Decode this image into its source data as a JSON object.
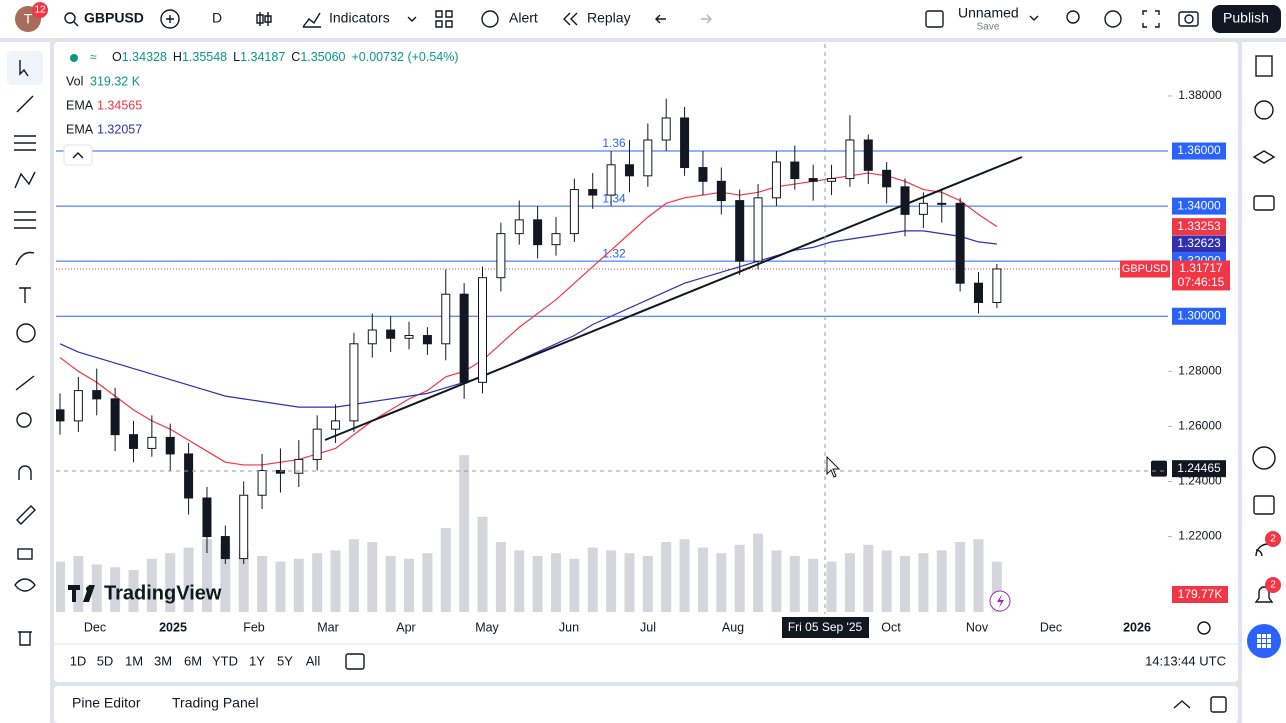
{
  "toolbar": {
    "avatar": "T",
    "badge": "12",
    "symbol": "GBPUSD",
    "interval": "D",
    "indicators": "Indicators",
    "alert": "Alert",
    "replay": "Replay",
    "layout_name": "Unnamed",
    "save": "Save",
    "publish": "Publish"
  },
  "legend": {
    "ohlc": [
      {
        "key": "O",
        "value": "1.34328"
      },
      {
        "key": "H",
        "value": "1.35548"
      },
      {
        "key": "L",
        "value": "1.34187"
      },
      {
        "key": "C",
        "value": "1.35060"
      }
    ],
    "change": "+0.00732 (+0.54%)",
    "volume": {
      "name": "Vol",
      "value": "319.32 K"
    }
  },
  "chart_data": {
    "type": "candlestick",
    "ylim": [
      1.1926,
      1.3985
    ],
    "yticks": [
      {
        "value": 1.38,
        "label": "1.38000"
      },
      {
        "value": 1.28,
        "label": "1.28000"
      },
      {
        "value": 1.26,
        "label": "1.26000"
      },
      {
        "value": 1.24,
        "label": "1.24000"
      },
      {
        "value": 1.22,
        "label": "1.22000"
      }
    ],
    "series": [
      {
        "name": "GBPUSD",
        "up_color": "#ffffff",
        "down_color": "#131722",
        "open": [
          1.266,
          1.262,
          1.273,
          1.27,
          1.257,
          1.252,
          1.256,
          1.25,
          1.234,
          1.22,
          1.212,
          1.235,
          1.244,
          1.243,
          1.248,
          1.259,
          1.262,
          1.29,
          1.295,
          1.292,
          1.293,
          1.29,
          1.308,
          1.276,
          1.314,
          1.33,
          1.335,
          1.326,
          1.33,
          1.346,
          1.344,
          1.355,
          1.351,
          1.364,
          1.372,
          1.354,
          1.349,
          1.342,
          1.32,
          1.343,
          1.356,
          1.35,
          1.349,
          1.35,
          1.364,
          1.353,
          1.347,
          1.337,
          1.341,
          1.341,
          1.312,
          1.305
        ],
        "high": [
          1.272,
          1.278,
          1.281,
          1.274,
          1.262,
          1.264,
          1.261,
          1.254,
          1.238,
          1.224,
          1.24,
          1.25,
          1.252,
          1.255,
          1.264,
          1.268,
          1.294,
          1.301,
          1.3,
          1.298,
          1.296,
          1.317,
          1.312,
          1.318,
          1.334,
          1.342,
          1.34,
          1.336,
          1.35,
          1.352,
          1.36,
          1.364,
          1.37,
          1.379,
          1.376,
          1.36,
          1.354,
          1.346,
          1.348,
          1.36,
          1.362,
          1.355,
          1.355,
          1.373,
          1.366,
          1.356,
          1.35,
          1.345,
          1.346,
          1.343,
          1.316,
          1.319
        ],
        "low": [
          1.257,
          1.258,
          1.264,
          1.251,
          1.247,
          1.249,
          1.244,
          1.228,
          1.214,
          1.21,
          1.21,
          1.23,
          1.236,
          1.238,
          1.244,
          1.254,
          1.258,
          1.285,
          1.287,
          1.288,
          1.286,
          1.284,
          1.27,
          1.272,
          1.309,
          1.326,
          1.321,
          1.322,
          1.327,
          1.339,
          1.34,
          1.345,
          1.347,
          1.36,
          1.351,
          1.344,
          1.337,
          1.315,
          1.317,
          1.34,
          1.346,
          1.342,
          1.344,
          1.347,
          1.348,
          1.341,
          1.329,
          1.332,
          1.334,
          1.309,
          1.301,
          1.303
        ],
        "close": [
          1.262,
          1.273,
          1.27,
          1.257,
          1.252,
          1.256,
          1.25,
          1.234,
          1.22,
          1.212,
          1.235,
          1.244,
          1.243,
          1.248,
          1.259,
          1.262,
          1.29,
          1.295,
          1.292,
          1.293,
          1.29,
          1.308,
          1.276,
          1.314,
          1.33,
          1.335,
          1.326,
          1.33,
          1.346,
          1.344,
          1.355,
          1.351,
          1.364,
          1.372,
          1.354,
          1.349,
          1.342,
          1.32,
          1.343,
          1.356,
          1.35,
          1.349,
          1.35,
          1.364,
          1.353,
          1.347,
          1.337,
          1.341,
          1.341,
          1.312,
          1.305,
          1.31717
        ]
      }
    ],
    "volume": {
      "color": "#b2b5be",
      "last_label": "179.77K",
      "last_color": "#f23645",
      "values": [
        180,
        200,
        170,
        160,
        150,
        190,
        210,
        230,
        260,
        240,
        220,
        200,
        180,
        190,
        210,
        220,
        260,
        250,
        200,
        190,
        210,
        300,
        560,
        340,
        250,
        220,
        200,
        210,
        190,
        230,
        220,
        210,
        200,
        250,
        260,
        230,
        210,
        240,
        280,
        220,
        200,
        190,
        180,
        210,
        240,
        220,
        200,
        210,
        220,
        250,
        260,
        179.77
      ]
    },
    "emas": [
      {
        "name": "EMA",
        "legend_value": "1.34565",
        "last_label": "1.33253",
        "color": "#f23645",
        "values": [
          1.285,
          1.28,
          1.276,
          1.271,
          1.266,
          1.262,
          1.259,
          1.255,
          1.251,
          1.247,
          1.246,
          1.246,
          1.247,
          1.248,
          1.25,
          1.252,
          1.257,
          1.262,
          1.266,
          1.27,
          1.273,
          1.278,
          1.28,
          1.284,
          1.29,
          1.296,
          1.301,
          1.306,
          1.312,
          1.318,
          1.324,
          1.33,
          1.336,
          1.341,
          1.343,
          1.344,
          1.345,
          1.344,
          1.345,
          1.347,
          1.348,
          1.349,
          1.35,
          1.351,
          1.352,
          1.351,
          1.349,
          1.346,
          1.345,
          1.342,
          1.337,
          1.33253
        ]
      },
      {
        "name": "EMA",
        "legend_value": "1.32057",
        "last_label": "1.32623",
        "color": "#3030b0",
        "values": [
          1.29,
          1.287,
          1.285,
          1.283,
          1.281,
          1.279,
          1.277,
          1.275,
          1.273,
          1.271,
          1.27,
          1.269,
          1.268,
          1.267,
          1.267,
          1.267,
          1.268,
          1.269,
          1.27,
          1.271,
          1.272,
          1.274,
          1.276,
          1.278,
          1.281,
          1.284,
          1.287,
          1.29,
          1.293,
          1.297,
          1.3,
          1.303,
          1.306,
          1.309,
          1.312,
          1.314,
          1.316,
          1.318,
          1.32,
          1.322,
          1.324,
          1.325,
          1.327,
          1.328,
          1.329,
          1.33,
          1.331,
          1.331,
          1.33,
          1.329,
          1.327,
          1.32623
        ]
      }
    ],
    "levels": {
      "color": "#2962ff",
      "items": [
        {
          "value": 1.36,
          "label": "1.36000",
          "text": "1.36"
        },
        {
          "value": 1.34,
          "label": "1.34000",
          "text": "1.34"
        },
        {
          "value": 1.32,
          "label": "1.32000",
          "text": "1.32"
        },
        {
          "value": 1.3,
          "label": "1.30000"
        }
      ]
    },
    "last_price": {
      "value": 1.31717,
      "label": "1.31717",
      "countdown": "07:46:15",
      "color": "#f23645"
    },
    "crosshair": {
      "price": {
        "value": 1.24465,
        "label": "1.24465"
      },
      "date": "Fri 05 Sep '25"
    },
    "xtick_labels": [
      "Dec",
      "2025",
      "Feb",
      "Mar",
      "Apr",
      "May",
      "Jun",
      "Jul",
      "Aug",
      "Oct",
      "Nov",
      "Dec",
      "2026"
    ]
  },
  "watermark": "TradingView",
  "bottom": {
    "ranges": [
      "1D",
      "5D",
      "1M",
      "3M",
      "6M",
      "YTD",
      "1Y",
      "5Y",
      "All"
    ],
    "clock": "14:13:44 UTC",
    "panels": [
      "Pine Editor",
      "Trading Panel"
    ]
  },
  "sidebar_badges": [
    "2",
    "2"
  ]
}
